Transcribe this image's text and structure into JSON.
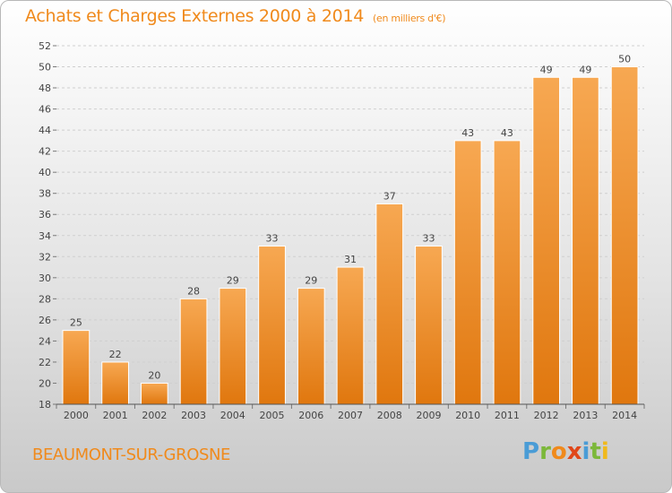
{
  "title": "Achats et Charges Externes 2000 à 2014",
  "unit": "(en milliers d'€)",
  "commune": "BEAUMONT-SUR-GROSNE",
  "brand": "Proxiti",
  "colors": {
    "bar": "#f0922e",
    "title": "#f08a1c"
  },
  "chart_data": {
    "type": "bar",
    "categories": [
      "2000",
      "2001",
      "2002",
      "2003",
      "2004",
      "2005",
      "2006",
      "2007",
      "2008",
      "2009",
      "2010",
      "2011",
      "2012",
      "2013",
      "2014"
    ],
    "values": [
      25,
      22,
      20,
      28,
      29,
      33,
      29,
      31,
      37,
      33,
      43,
      43,
      49,
      49,
      50
    ],
    "ylim": [
      18,
      52
    ],
    "yticks": [
      18,
      20,
      22,
      24,
      26,
      28,
      30,
      32,
      34,
      36,
      38,
      40,
      42,
      44,
      46,
      48,
      50,
      52
    ],
    "grid": true,
    "title": "Achats et Charges Externes 2000 à 2014",
    "xlabel": "",
    "ylabel": ""
  }
}
